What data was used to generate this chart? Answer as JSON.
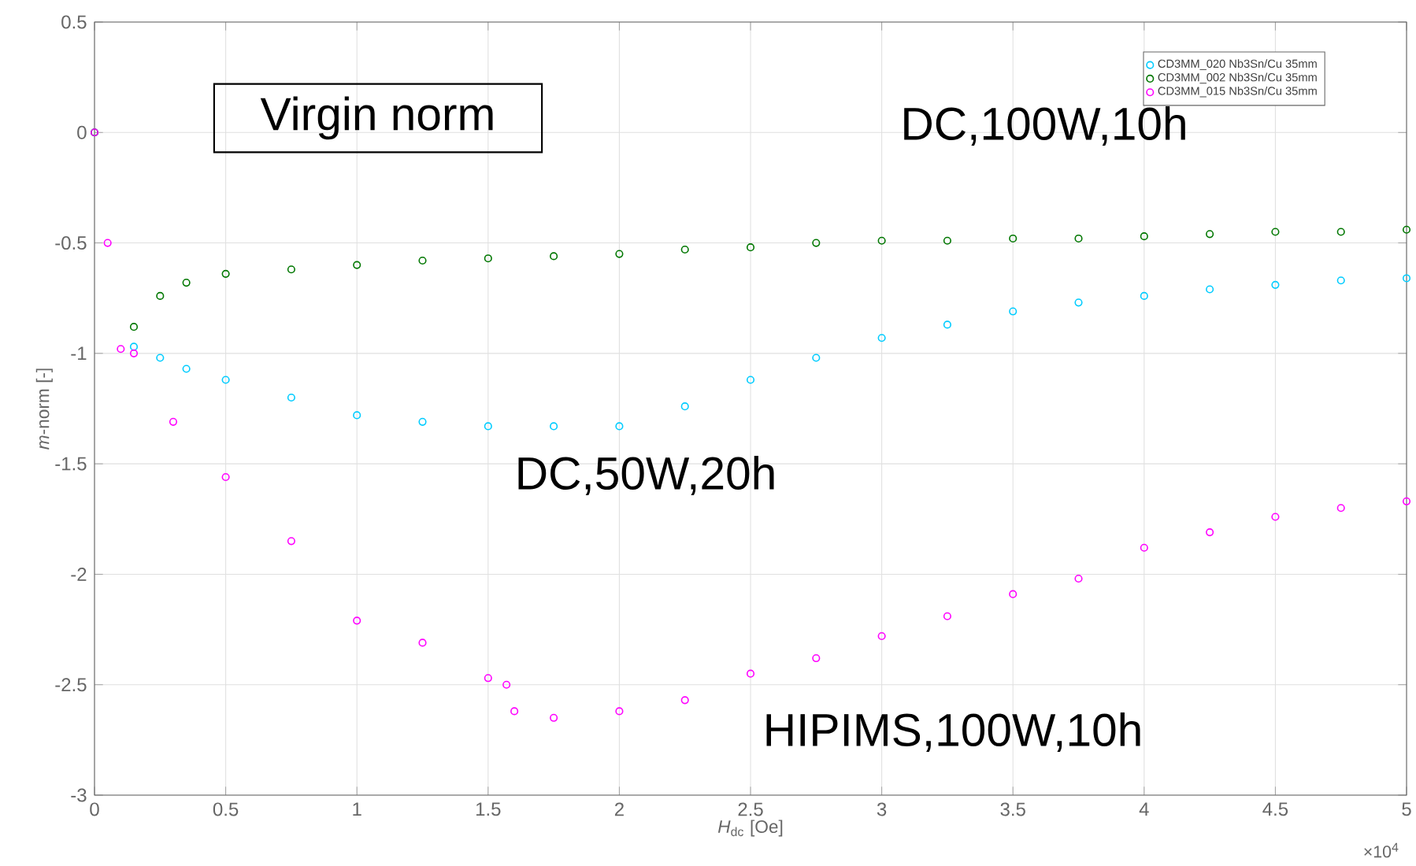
{
  "chart_data": {
    "type": "scatter",
    "xlabel": "*H*$_{dc}$ [Oe]",
    "ylabel": "*m*-norm [-]",
    "annotations": [
      "Virgin norm",
      "DC,100W,10h",
      "DC,50W,20h",
      "HIPIMS,100W,10h",
      "×10$^{4}$"
    ],
    "xlim": [
      0,
      5
    ],
    "ylim": [
      -3,
      0.5
    ],
    "xticks": [
      0,
      0.5,
      1,
      1.5,
      2,
      2.5,
      3,
      3.5,
      4,
      4.5,
      5
    ],
    "yticks": [
      -3,
      -2.5,
      -2,
      -1.5,
      -1,
      -0.5,
      0,
      0.5
    ],
    "grid": true,
    "legend": "top right",
    "marker": "circle",
    "series": [
      {
        "name": "CD3MM_020 Nb3Sn/Cu 35mm",
        "color": "#00ccff",
        "x": [
          0,
          0.05,
          0.1,
          0.15,
          0.25,
          0.35,
          0.5,
          0.75,
          1,
          1.25,
          1.5,
          1.75,
          2,
          2.25,
          2.5,
          2.75,
          3,
          3.25,
          3.5,
          3.75,
          4,
          4.25,
          4.5,
          4.75,
          5
        ],
        "values": [
          0,
          null,
          null,
          -0.97,
          -1.02,
          -1.07,
          -1.12,
          -1.2,
          -1.28,
          -1.31,
          -1.33,
          -1.33,
          -1.33,
          -1.24,
          -1.12,
          -1.02,
          -0.93,
          -0.87,
          -0.81,
          -0.77,
          -0.74,
          -0.71,
          -0.69,
          -0.67,
          -0.66
        ]
      },
      {
        "name": "CD3MM_002 Nb3Sn/Cu 35mm",
        "color": "#007700",
        "x": [
          0,
          0.05,
          0.1,
          0.15,
          0.25,
          0.35,
          0.5,
          0.75,
          1,
          1.25,
          1.5,
          1.75,
          2,
          2.25,
          2.5,
          2.75,
          3,
          3.25,
          3.5,
          3.75,
          4,
          4.25,
          4.5,
          4.75,
          5
        ],
        "values": [
          0,
          null,
          null,
          -0.88,
          -0.74,
          -0.68,
          -0.64,
          -0.62,
          -0.6,
          -0.58,
          -0.57,
          -0.56,
          -0.55,
          -0.53,
          -0.52,
          -0.5,
          -0.49,
          -0.49,
          -0.48,
          -0.48,
          -0.47,
          -0.46,
          -0.45,
          -0.45,
          -0.44
        ]
      },
      {
        "name": "CD3MM_015 Nb3Sn/Cu 35mm",
        "color": "#ff00ff",
        "x": [
          0,
          0.05,
          0.1,
          0.15,
          0.3,
          0.5,
          0.75,
          1,
          1.25,
          1.5,
          1.57,
          1.6,
          1.75,
          2,
          2.25,
          2.5,
          2.75,
          3,
          3.25,
          3.5,
          3.75,
          4,
          4.25,
          4.5,
          4.75,
          5
        ],
        "values": [
          0,
          -0.5,
          -0.98,
          -1.0,
          -1.31,
          -1.56,
          -1.85,
          -2.21,
          -2.31,
          -2.47,
          -2.5,
          -2.62,
          -2.65,
          -2.62,
          -2.57,
          -2.45,
          -2.38,
          -2.28,
          -2.19,
          -2.09,
          -2.02,
          -1.88,
          -1.81,
          -1.74,
          -1.7,
          -1.67
        ]
      }
    ]
  }
}
